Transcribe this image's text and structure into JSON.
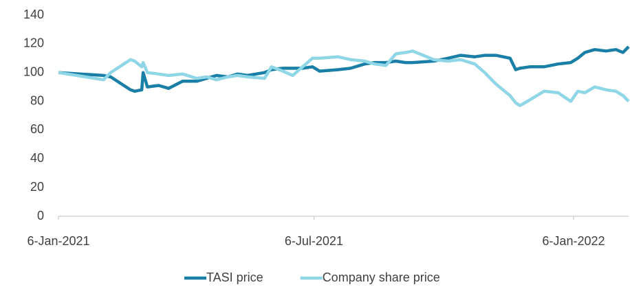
{
  "chart_data": {
    "type": "line",
    "x": [
      "2021-01-06",
      "2021-02-07",
      "2021-02-12",
      "2021-02-26",
      "2021-03-01",
      "2021-03-06",
      "2021-03-07",
      "2021-03-10",
      "2021-03-18",
      "2021-03-25",
      "2021-04-04",
      "2021-04-14",
      "2021-04-21",
      "2021-04-28",
      "2021-05-06",
      "2021-05-13",
      "2021-05-20",
      "2021-06-01",
      "2021-06-06",
      "2021-06-14",
      "2021-06-21",
      "2021-06-28",
      "2021-07-05",
      "2021-07-10",
      "2021-07-23",
      "2021-08-01",
      "2021-08-11",
      "2021-08-18",
      "2021-08-26",
      "2021-09-02",
      "2021-09-09",
      "2021-09-14",
      "2021-09-29",
      "2021-10-09",
      "2021-10-18",
      "2021-10-28",
      "2021-11-04",
      "2021-11-12",
      "2021-11-22",
      "2021-11-26",
      "2021-11-29",
      "2021-12-06",
      "2021-12-16",
      "2021-12-26",
      "2022-01-04",
      "2022-01-09",
      "2022-01-14",
      "2022-01-21",
      "2022-01-29",
      "2022-02-05",
      "2022-02-10",
      "2022-02-14"
    ],
    "series": [
      {
        "name": "TASI price",
        "color": "#1a7fa6",
        "values": [
          100,
          98,
          97,
          88,
          87,
          88,
          100,
          90,
          91,
          89,
          94,
          94,
          96,
          98,
          97,
          99,
          98,
          100,
          102,
          103,
          103,
          103,
          104,
          101,
          102,
          103,
          106,
          107,
          107,
          108,
          107,
          107,
          108,
          110,
          112,
          111,
          112,
          112,
          110,
          102,
          103,
          104,
          104,
          106,
          107,
          110,
          114,
          116,
          115,
          116,
          114,
          118
        ]
      },
      {
        "name": "Company share price",
        "color": "#8fd6e6",
        "values": [
          100,
          95,
          100,
          109,
          108,
          104,
          107,
          100,
          99,
          98,
          99,
          96,
          97,
          95,
          97,
          98,
          97,
          96,
          104,
          101,
          98,
          104,
          110,
          110,
          111,
          109,
          108,
          106,
          105,
          113,
          114,
          115,
          109,
          108,
          109,
          106,
          100,
          92,
          84,
          79,
          77,
          81,
          87,
          86,
          80,
          87,
          86,
          90,
          88,
          87,
          84,
          80
        ]
      }
    ],
    "xlim": [
      "2021-01-06",
      "2022-02-14"
    ],
    "xticks": [
      {
        "value": "2021-01-06",
        "label": "6-Jan-2021"
      },
      {
        "value": "2021-07-06",
        "label": "6-Jul-2021"
      },
      {
        "value": "2022-01-06",
        "label": "6-Jan-2022"
      }
    ],
    "ylim": [
      0,
      140
    ],
    "yticks": [
      0,
      20,
      40,
      60,
      80,
      100,
      120,
      140
    ],
    "grid": false,
    "legend": "bottom"
  }
}
